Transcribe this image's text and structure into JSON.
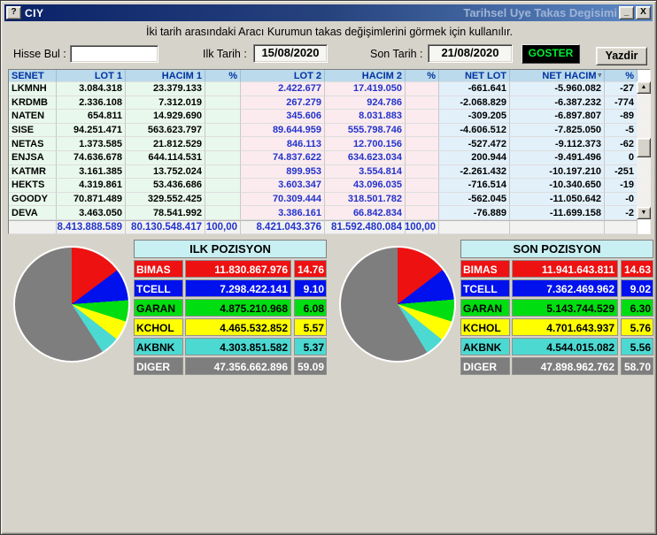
{
  "window": {
    "title_left": "CIY",
    "title_right": "Tarihsel Uye Takas Degisimi",
    "help_glyph": "?",
    "minimize_glyph": "_",
    "close_glyph": "X",
    "info_line": "İki tarih arasındaki  Aracı Kurumun takas değişimlerini görmek için kullanılır."
  },
  "form": {
    "hisse_bul_label": "Hisse Bul :",
    "hisse_bul_value": "",
    "ilk_tarih_label": "Ilk Tarih :",
    "ilk_tarih_value": "15/08/2020",
    "son_tarih_label": "Son Tarih :",
    "son_tarih_value": "21/08/2020",
    "goster_label": "GOSTER",
    "yazdir_label": "Yazdir"
  },
  "main_table": {
    "columns": [
      "SENET",
      "LOT 1",
      "HACIM 1",
      "%",
      "LOT 2",
      "HACIM 2",
      "%",
      "NET LOT",
      "NET HACIM",
      "%"
    ],
    "rows": [
      [
        "LKMNH",
        "3.084.318",
        "23.379.133",
        "",
        "2.422.677",
        "17.419.050",
        "",
        "-661.641",
        "-5.960.082",
        "-27"
      ],
      [
        "KRDMB",
        "2.336.108",
        "7.312.019",
        "",
        "267.279",
        "924.786",
        "",
        "-2.068.829",
        "-6.387.232",
        "-774"
      ],
      [
        "NATEN",
        "654.811",
        "14.929.690",
        "",
        "345.606",
        "8.031.883",
        "",
        "-309.205",
        "-6.897.807",
        "-89"
      ],
      [
        "SISE",
        "94.251.471",
        "563.623.797",
        "",
        "89.644.959",
        "555.798.746",
        "",
        "-4.606.512",
        "-7.825.050",
        "-5"
      ],
      [
        "NETAS",
        "1.373.585",
        "21.812.529",
        "",
        "846.113",
        "12.700.156",
        "",
        "-527.472",
        "-9.112.373",
        "-62"
      ],
      [
        "ENJSA",
        "74.636.678",
        "644.114.531",
        "",
        "74.837.622",
        "634.623.034",
        "",
        "200.944",
        "-9.491.496",
        "0"
      ],
      [
        "KATMR",
        "3.161.385",
        "13.752.024",
        "",
        "899.953",
        "3.554.814",
        "",
        "-2.261.432",
        "-10.197.210",
        "-251"
      ],
      [
        "HEKTS",
        "4.319.861",
        "53.436.686",
        "",
        "3.603.347",
        "43.096.035",
        "",
        "-716.514",
        "-10.340.650",
        "-19"
      ],
      [
        "GOODY",
        "70.871.489",
        "329.552.425",
        "",
        "70.309.444",
        "318.501.782",
        "",
        "-562.045",
        "-11.050.642",
        "-0"
      ],
      [
        "DEVA",
        "3.463.050",
        "78.541.992",
        "",
        "3.386.161",
        "66.842.834",
        "",
        "-76.889",
        "-11.699.158",
        "-2"
      ]
    ],
    "totals": [
      "",
      "8.413.888.589",
      "80.130.548.417",
      "100,00",
      "8.421.043.376",
      "81.592.480.084",
      "100,00",
      "",
      "",
      ""
    ]
  },
  "positions": {
    "row_colors": {
      "BIMAS": {
        "bg": "#EE1111",
        "fg": "#FFFFFF"
      },
      "TCELL": {
        "bg": "#0011EE",
        "fg": "#FFFFFF"
      },
      "GARAN": {
        "bg": "#00DD11",
        "fg": "#000000"
      },
      "KCHOL": {
        "bg": "#FFFF00",
        "fg": "#000000"
      },
      "AKBNK": {
        "bg": "#4CD9D2",
        "fg": "#000000"
      },
      "DIGER": {
        "bg": "#7E7E7E",
        "fg": "#FFFFFF"
      }
    },
    "ilk": {
      "title": "ILK POZISYON",
      "rows": [
        [
          "BIMAS",
          "11.830.867.976",
          "14.76"
        ],
        [
          "TCELL",
          "7.298.422.141",
          "9.10"
        ],
        [
          "GARAN",
          "4.875.210.968",
          "6.08"
        ],
        [
          "KCHOL",
          "4.465.532.852",
          "5.57"
        ],
        [
          "AKBNK",
          "4.303.851.582",
          "5.37"
        ],
        [
          "DIGER",
          "47.356.662.896",
          "59.09"
        ]
      ]
    },
    "son": {
      "title": "SON POZISYON",
      "rows": [
        [
          "BIMAS",
          "11.941.643.811",
          "14.63"
        ],
        [
          "TCELL",
          "7.362.469.962",
          "9.02"
        ],
        [
          "GARAN",
          "5.143.744.529",
          "6.30"
        ],
        [
          "KCHOL",
          "4.701.643.937",
          "5.76"
        ],
        [
          "AKBNK",
          "4.544.015.082",
          "5.56"
        ],
        [
          "DIGER",
          "47.898.962.762",
          "58.70"
        ]
      ]
    }
  },
  "chart_data": [
    {
      "type": "pie",
      "title": "ILK POZISYON",
      "categories": [
        "BIMAS",
        "TCELL",
        "GARAN",
        "KCHOL",
        "AKBNK",
        "DIGER"
      ],
      "values": [
        14.76,
        9.1,
        6.08,
        5.57,
        5.37,
        59.09
      ],
      "amounts": [
        "11.830.867.976",
        "7.298.422.141",
        "4.875.210.968",
        "4.465.532.852",
        "4.303.851.582",
        "47.356.662.896"
      ],
      "colors": [
        "#EE1111",
        "#0011EE",
        "#00DD11",
        "#FFFF00",
        "#4CD9D2",
        "#7E7E7E"
      ],
      "start_angle_deg": 0,
      "direction": "clockwise",
      "legend_position": "right-table"
    },
    {
      "type": "pie",
      "title": "SON POZISYON",
      "categories": [
        "BIMAS",
        "TCELL",
        "GARAN",
        "KCHOL",
        "AKBNK",
        "DIGER"
      ],
      "values": [
        14.63,
        9.02,
        6.3,
        5.76,
        5.56,
        58.7
      ],
      "amounts": [
        "11.941.643.811",
        "7.362.469.962",
        "5.143.744.529",
        "4.701.643.937",
        "4.544.015.082",
        "47.898.962.762"
      ],
      "colors": [
        "#EE1111",
        "#0011EE",
        "#00DD11",
        "#FFFF00",
        "#4CD9D2",
        "#7E7E7E"
      ],
      "start_angle_deg": 0,
      "direction": "clockwise",
      "legend_position": "right-table"
    }
  ],
  "scrollbar": {
    "up_glyph": "▲",
    "down_glyph": "▼"
  },
  "colors": {
    "titlebar_start": "#0A2268",
    "titlebar_end": "#5E8AC6",
    "grid_header_bg": "#BBDAEC",
    "grid_header_fg": "#0033A0",
    "group1_bg": "#E9F8EC",
    "group2_bg": "#FBEBEE",
    "group2_fg": "#2233CC",
    "group3_bg": "#E2F0FA",
    "goster_bg": "#000000",
    "goster_fg": "#00EE33",
    "pos_header_bg": "#C8EFF2"
  }
}
